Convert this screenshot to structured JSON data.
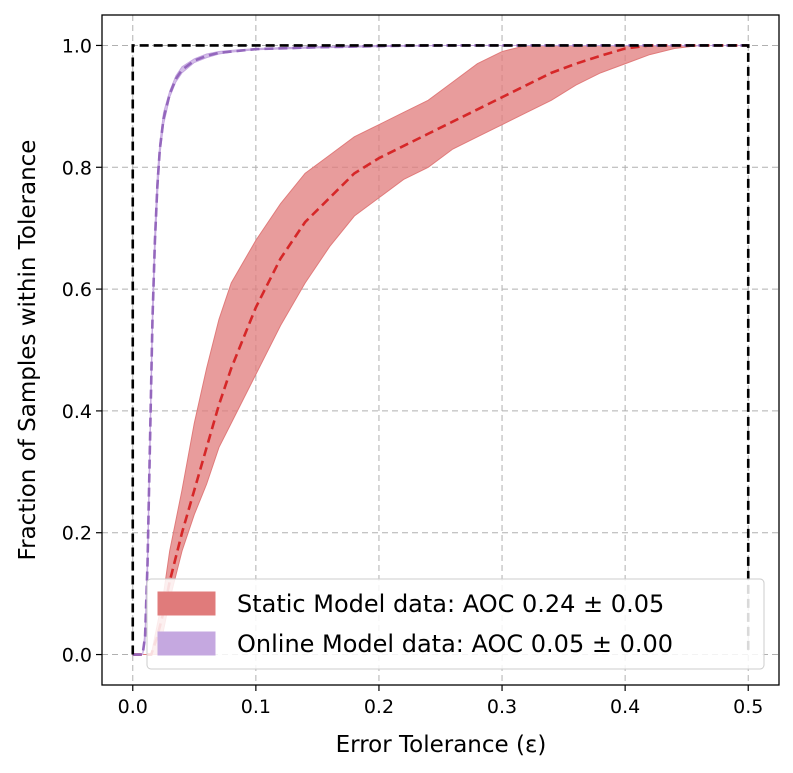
{
  "chart_data": {
    "type": "line",
    "xlabel": "Error Tolerance (ε)",
    "ylabel": "Fraction of Samples within Tolerance",
    "xlim": [
      -0.025,
      0.525
    ],
    "ylim": [
      -0.05,
      1.05
    ],
    "xticks": [
      0.0,
      0.1,
      0.2,
      0.3,
      0.4,
      0.5
    ],
    "xtick_labels": [
      "0.0",
      "0.1",
      "0.2",
      "0.3",
      "0.4",
      "0.5"
    ],
    "yticks": [
      0.0,
      0.2,
      0.4,
      0.6,
      0.8,
      1.0
    ],
    "ytick_labels": [
      "0.0",
      "0.2",
      "0.4",
      "0.6",
      "0.8",
      "1.0"
    ],
    "grid": true,
    "legend_position": "bottom-right",
    "series": [
      {
        "name": "Static Model data: AOC 0.24 ± 0.05",
        "color": "#d62728",
        "band_color": "#e07b7b",
        "x": [
          0.0,
          0.01,
          0.015,
          0.02,
          0.025,
          0.03,
          0.04,
          0.05,
          0.06,
          0.07,
          0.08,
          0.1,
          0.12,
          0.14,
          0.16,
          0.18,
          0.2,
          0.22,
          0.24,
          0.26,
          0.28,
          0.3,
          0.32,
          0.34,
          0.36,
          0.38,
          0.4,
          0.42,
          0.44,
          0.46,
          0.5
        ],
        "mean": [
          0.0,
          0.0,
          0.0,
          0.03,
          0.07,
          0.12,
          0.2,
          0.27,
          0.34,
          0.41,
          0.47,
          0.57,
          0.65,
          0.71,
          0.75,
          0.79,
          0.815,
          0.835,
          0.855,
          0.875,
          0.895,
          0.915,
          0.935,
          0.955,
          0.97,
          0.983,
          0.995,
          1.0,
          1.0,
          1.0,
          1.0
        ],
        "lower": [
          0.0,
          0.0,
          0.0,
          0.0,
          0.04,
          0.09,
          0.17,
          0.23,
          0.28,
          0.34,
          0.38,
          0.46,
          0.54,
          0.61,
          0.67,
          0.72,
          0.75,
          0.78,
          0.8,
          0.83,
          0.85,
          0.87,
          0.89,
          0.91,
          0.935,
          0.955,
          0.97,
          0.985,
          0.995,
          1.0,
          1.0
        ],
        "upper": [
          0.0,
          0.0,
          0.0,
          0.05,
          0.1,
          0.17,
          0.27,
          0.38,
          0.47,
          0.55,
          0.61,
          0.68,
          0.74,
          0.79,
          0.82,
          0.85,
          0.87,
          0.89,
          0.91,
          0.94,
          0.97,
          0.99,
          1.0,
          1.0,
          1.0,
          1.0,
          1.0,
          1.0,
          1.0,
          1.0,
          1.0
        ]
      },
      {
        "name": "Online Model data: AOC 0.05 ± 0.00",
        "color": "#9467bd",
        "band_color": "#c5a8e0",
        "x": [
          0.0,
          0.008,
          0.01,
          0.012,
          0.014,
          0.016,
          0.018,
          0.02,
          0.022,
          0.025,
          0.03,
          0.035,
          0.04,
          0.05,
          0.06,
          0.07,
          0.08,
          0.1,
          0.15,
          0.2,
          0.25,
          0.5
        ],
        "mean": [
          0.0,
          0.0,
          0.03,
          0.15,
          0.35,
          0.55,
          0.68,
          0.77,
          0.83,
          0.88,
          0.92,
          0.945,
          0.96,
          0.975,
          0.983,
          0.988,
          0.99,
          0.994,
          0.997,
          0.999,
          1.0,
          1.0
        ],
        "lower": [
          0.0,
          0.0,
          0.02,
          0.13,
          0.33,
          0.53,
          0.66,
          0.75,
          0.82,
          0.87,
          0.915,
          0.94,
          0.955,
          0.972,
          0.98,
          0.986,
          0.989,
          0.993,
          0.996,
          0.998,
          1.0,
          1.0
        ],
        "upper": [
          0.0,
          0.0,
          0.04,
          0.17,
          0.37,
          0.57,
          0.7,
          0.79,
          0.84,
          0.89,
          0.925,
          0.95,
          0.965,
          0.978,
          0.986,
          0.99,
          0.992,
          0.995,
          0.998,
          1.0,
          1.0,
          1.0
        ]
      }
    ],
    "reference": {
      "name": "ideal-boundary",
      "color": "#000000",
      "x": [
        0.0,
        0.0,
        0.5,
        0.5
      ],
      "y": [
        0.0,
        1.0,
        1.0,
        0.0
      ]
    }
  }
}
